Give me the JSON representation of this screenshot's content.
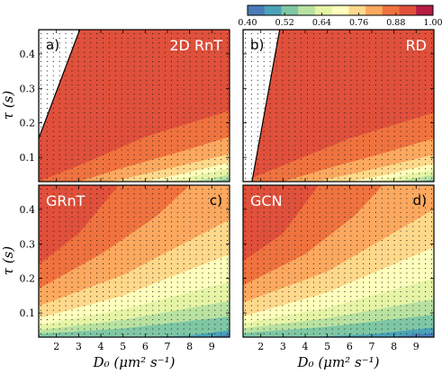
{
  "chart_data": {
    "type": "contour",
    "colorbar": {
      "levels": [
        0.4,
        0.46,
        0.52,
        0.58,
        0.64,
        0.7,
        0.76,
        0.82,
        0.88,
        0.94,
        1.0
      ],
      "tick_labels": [
        "0.40",
        "0.52",
        "0.64",
        "0.76",
        "0.88",
        "1.00"
      ],
      "colors": [
        "#4a7bb7",
        "#4aa3b8",
        "#7fc7a4",
        "#b9e2a1",
        "#e6f4a6",
        "#fefebd",
        "#fed98b",
        "#fca95f",
        "#f0733f",
        "#e0503b",
        "#b81c43"
      ],
      "colormap": "Spectral_r"
    },
    "x_axis": {
      "label": "D₀ (μm² s⁻¹)",
      "ticks": [
        2,
        3,
        4,
        5,
        6,
        7,
        8,
        9
      ],
      "range": [
        1.2,
        9.8
      ]
    },
    "y_axis": {
      "label": "τ (s)",
      "ticks": [
        0.1,
        0.2,
        0.3,
        0.4
      ],
      "tick_labels": [
        "0.1",
        "0.2",
        "0.3",
        "0.4"
      ],
      "range": [
        0.03,
        0.47
      ]
    },
    "panels": [
      {
        "letter": "a)",
        "title": "2D RnT",
        "letter_pos": "top-left",
        "title_pos": "top-right",
        "show_xticks": false,
        "show_yticks": true,
        "base_color": "#e0503b",
        "bands": [
          {
            "color": "#f0733f",
            "boundary": [
              [
                1.2,
                0.03
              ],
              [
                3.5,
                0.09
              ],
              [
                6,
                0.16
              ],
              [
                9.8,
                0.235
              ]
            ]
          },
          {
            "color": "#fca95f",
            "boundary": [
              [
                3,
                0.03
              ],
              [
                5,
                0.07
              ],
              [
                7.5,
                0.115
              ],
              [
                9.8,
                0.16
              ]
            ]
          },
          {
            "color": "#fed98b",
            "boundary": [
              [
                4.5,
                0.03
              ],
              [
                6.5,
                0.06
              ],
              [
                8.5,
                0.09
              ],
              [
                9.8,
                0.11
              ]
            ]
          },
          {
            "color": "#fefebd",
            "boundary": [
              [
                6,
                0.03
              ],
              [
                7.5,
                0.05
              ],
              [
                9.8,
                0.085
              ]
            ]
          },
          {
            "color": "#e6f4a6",
            "boundary": [
              [
                7,
                0.03
              ],
              [
                8.5,
                0.05
              ],
              [
                9.8,
                0.068
              ]
            ]
          },
          {
            "color": "#b9e2a1",
            "boundary": [
              [
                8,
                0.03
              ],
              [
                9,
                0.04
              ],
              [
                9.8,
                0.05
              ]
            ]
          },
          {
            "color": "#7fc7a4",
            "boundary": [
              [
                9,
                0.03
              ],
              [
                9.8,
                0.038
              ]
            ]
          }
        ],
        "invalid_region": [
          [
            1.2,
            0.155
          ],
          [
            3.05,
            0.47
          ],
          [
            1.2,
            0.47
          ]
        ]
      },
      {
        "letter": "b)",
        "title": "RD",
        "letter_pos": "top-left",
        "title_pos": "top-right",
        "show_xticks": false,
        "show_yticks": false,
        "base_color": "#e0503b",
        "bands": [
          {
            "color": "#f0733f",
            "boundary": [
              [
                1.2,
                0.03
              ],
              [
                3.5,
                0.09
              ],
              [
                6,
                0.155
              ],
              [
                9.8,
                0.23
              ]
            ]
          },
          {
            "color": "#fca95f",
            "boundary": [
              [
                3,
                0.03
              ],
              [
                5,
                0.068
              ],
              [
                7.5,
                0.112
              ],
              [
                9.8,
                0.155
              ]
            ]
          },
          {
            "color": "#fed98b",
            "boundary": [
              [
                4.5,
                0.03
              ],
              [
                6.5,
                0.058
              ],
              [
                8.5,
                0.088
              ],
              [
                9.8,
                0.108
              ]
            ]
          },
          {
            "color": "#fefebd",
            "boundary": [
              [
                6,
                0.03
              ],
              [
                7.5,
                0.048
              ],
              [
                9.8,
                0.082
              ]
            ]
          },
          {
            "color": "#e6f4a6",
            "boundary": [
              [
                7,
                0.03
              ],
              [
                8.5,
                0.048
              ],
              [
                9.8,
                0.065
              ]
            ]
          },
          {
            "color": "#b9e2a1",
            "boundary": [
              [
                8,
                0.03
              ],
              [
                9,
                0.04
              ],
              [
                9.8,
                0.05
              ]
            ]
          },
          {
            "color": "#7fc7a4",
            "boundary": [
              [
                9,
                0.03
              ],
              [
                9.8,
                0.037
              ]
            ]
          }
        ],
        "invalid_region": [
          [
            1.2,
            0.03
          ],
          [
            1.6,
            0.03
          ],
          [
            2.85,
            0.47
          ],
          [
            1.2,
            0.47
          ]
        ]
      },
      {
        "letter": "c)",
        "title": "GRnT",
        "letter_pos": "top-right",
        "title_pos": "top-left",
        "show_xticks": true,
        "show_yticks": true,
        "base_color": "#e0503b",
        "bands": [
          {
            "color": "#f0733f",
            "boundary": [
              [
                1.2,
                0.24
              ],
              [
                3,
                0.33
              ],
              [
                4.8,
                0.47
              ],
              [
                9.8,
                0.47
              ]
            ]
          },
          {
            "color": "#fca95f",
            "boundary": [
              [
                1.2,
                0.17
              ],
              [
                4,
                0.27
              ],
              [
                6.5,
                0.38
              ],
              [
                8,
                0.47
              ],
              [
                9.8,
                0.47
              ]
            ]
          },
          {
            "color": "#fed98b",
            "boundary": [
              [
                1.2,
                0.12
              ],
              [
                5,
                0.21
              ],
              [
                9.8,
                0.37
              ]
            ]
          },
          {
            "color": "#fefebd",
            "boundary": [
              [
                1.2,
                0.085
              ],
              [
                5,
                0.15
              ],
              [
                9.8,
                0.27
              ]
            ]
          },
          {
            "color": "#e6f4a6",
            "boundary": [
              [
                1.2,
                0.065
              ],
              [
                5,
                0.11
              ],
              [
                9.8,
                0.19
              ]
            ]
          },
          {
            "color": "#b9e2a1",
            "boundary": [
              [
                1.2,
                0.05
              ],
              [
                5,
                0.08
              ],
              [
                9.8,
                0.135
              ]
            ]
          },
          {
            "color": "#7fc7a4",
            "boundary": [
              [
                1.2,
                0.04
              ],
              [
                5,
                0.055
              ],
              [
                9.8,
                0.09
              ]
            ]
          },
          {
            "color": "#4aa3b8",
            "boundary": [
              [
                6,
                0.03
              ],
              [
                8,
                0.035
              ],
              [
                9.8,
                0.05
              ]
            ]
          },
          {
            "color": "#4a7bb7",
            "boundary": [
              [
                8.8,
                0.03
              ],
              [
                9.8,
                0.038
              ]
            ]
          }
        ],
        "invalid_region": null
      },
      {
        "letter": "d)",
        "title": "GCN",
        "letter_pos": "top-right",
        "title_pos": "top-left",
        "show_xticks": true,
        "show_yticks": false,
        "base_color": "#e0503b",
        "bands": [
          {
            "color": "#f0733f",
            "boundary": [
              [
                1.2,
                0.25
              ],
              [
                3,
                0.33
              ],
              [
                4.6,
                0.47
              ],
              [
                9.8,
                0.47
              ]
            ]
          },
          {
            "color": "#fca95f",
            "boundary": [
              [
                1.2,
                0.18
              ],
              [
                4,
                0.27
              ],
              [
                6.2,
                0.38
              ],
              [
                7.5,
                0.47
              ],
              [
                9.8,
                0.47
              ]
            ]
          },
          {
            "color": "#fed98b",
            "boundary": [
              [
                1.2,
                0.13
              ],
              [
                5,
                0.22
              ],
              [
                9.8,
                0.4
              ]
            ]
          },
          {
            "color": "#fefebd",
            "boundary": [
              [
                1.2,
                0.09
              ],
              [
                5,
                0.16
              ],
              [
                9.8,
                0.29
              ]
            ]
          },
          {
            "color": "#e6f4a6",
            "boundary": [
              [
                1.2,
                0.07
              ],
              [
                5,
                0.115
              ],
              [
                9.8,
                0.2
              ]
            ]
          },
          {
            "color": "#b9e2a1",
            "boundary": [
              [
                1.2,
                0.055
              ],
              [
                5,
                0.085
              ],
              [
                9.8,
                0.14
              ]
            ]
          },
          {
            "color": "#7fc7a4",
            "boundary": [
              [
                1.2,
                0.042
              ],
              [
                5,
                0.06
              ],
              [
                9.8,
                0.095
              ]
            ]
          },
          {
            "color": "#4aa3b8",
            "boundary": [
              [
                4,
                0.03
              ],
              [
                7,
                0.038
              ],
              [
                9.8,
                0.058
              ]
            ]
          },
          {
            "color": "#4a7bb7",
            "boundary": [
              [
                7.8,
                0.03
              ],
              [
                9.8,
                0.042
              ]
            ]
          }
        ],
        "invalid_region": null
      }
    ],
    "grid_points": {
      "x_start": 1.3,
      "x_step": 0.28,
      "x_count": 31,
      "y_start": 0.04,
      "y_step": 0.0135,
      "y_count": 32
    }
  }
}
